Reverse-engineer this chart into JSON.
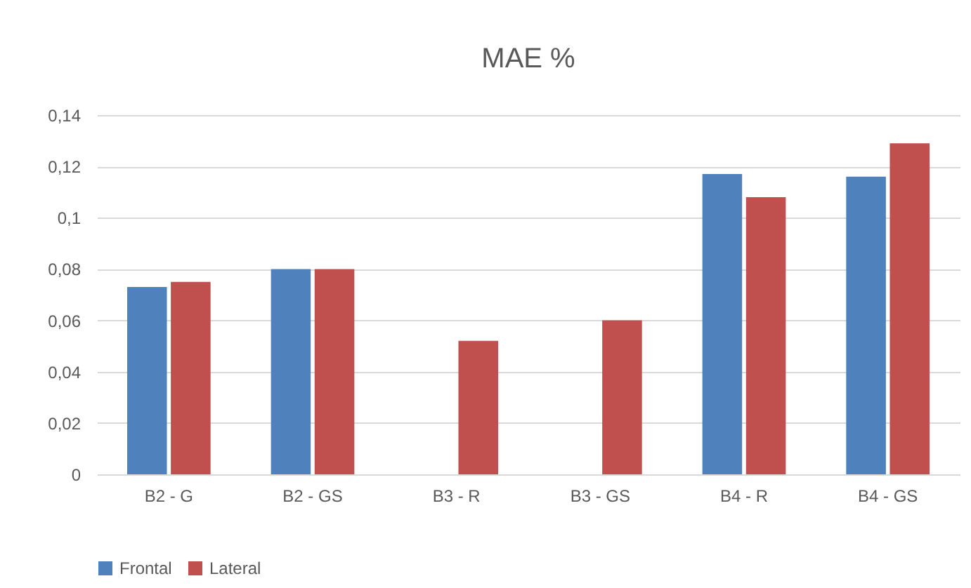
{
  "chart_data": {
    "type": "bar",
    "title": "MAE %",
    "categories": [
      "B2 - G",
      "B2 - GS",
      "B3 - R",
      "B3 - GS",
      "B4 - R",
      "B4 - GS"
    ],
    "series": [
      {
        "name": "Frontal",
        "color": "#4f81bd",
        "values": [
          0.073,
          0.08,
          null,
          null,
          0.117,
          0.116
        ]
      },
      {
        "name": "Lateral",
        "color": "#c0504d",
        "values": [
          0.075,
          0.08,
          0.052,
          0.06,
          0.108,
          0.129
        ]
      }
    ],
    "ylim": [
      0,
      0.14
    ],
    "yticks": [
      {
        "value": 0,
        "label": "0"
      },
      {
        "value": 0.02,
        "label": "0,02"
      },
      {
        "value": 0.04,
        "label": "0,04"
      },
      {
        "value": 0.06,
        "label": "0,06"
      },
      {
        "value": 0.08,
        "label": "0,08"
      },
      {
        "value": 0.1,
        "label": "0,1"
      },
      {
        "value": 0.12,
        "label": "0,12"
      },
      {
        "value": 0.14,
        "label": "0,14"
      }
    ],
    "grid": "y",
    "legend": "bottom"
  }
}
